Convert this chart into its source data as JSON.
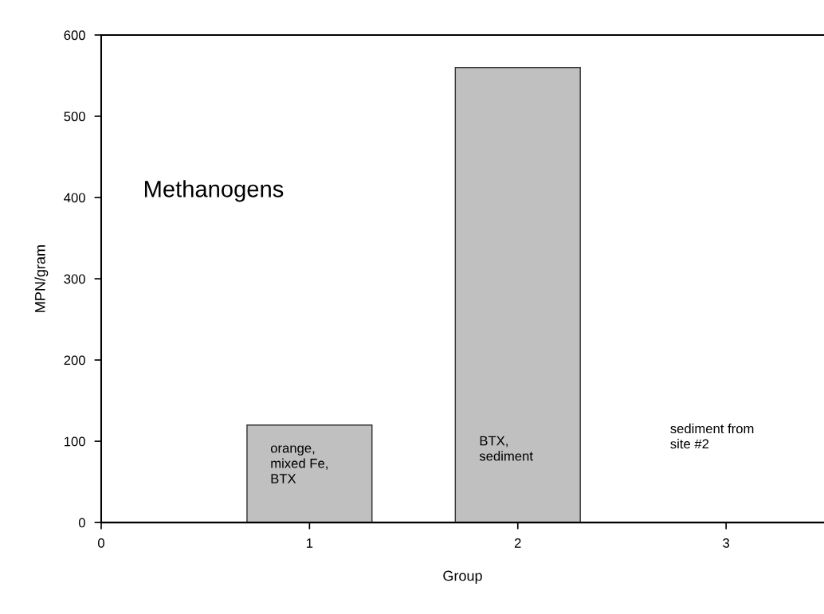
{
  "chart_data": {
    "type": "bar",
    "xlabel": "Group",
    "ylabel": "MPN/gram",
    "x": [
      1,
      2
    ],
    "values": [
      120,
      560
    ],
    "color": "#c0c0c0",
    "xlim": [
      0,
      3.47
    ],
    "xticks": [
      0,
      1,
      2,
      3
    ],
    "ylim": [
      0,
      600
    ],
    "yticks": [
      0,
      100,
      200,
      300,
      400,
      500,
      600
    ],
    "grid": false,
    "annotations": [
      "Methanogens",
      "orange,\nmixed Fe,\nBTX",
      "BTX,\nsediment",
      "sediment from\nsite #2"
    ]
  }
}
